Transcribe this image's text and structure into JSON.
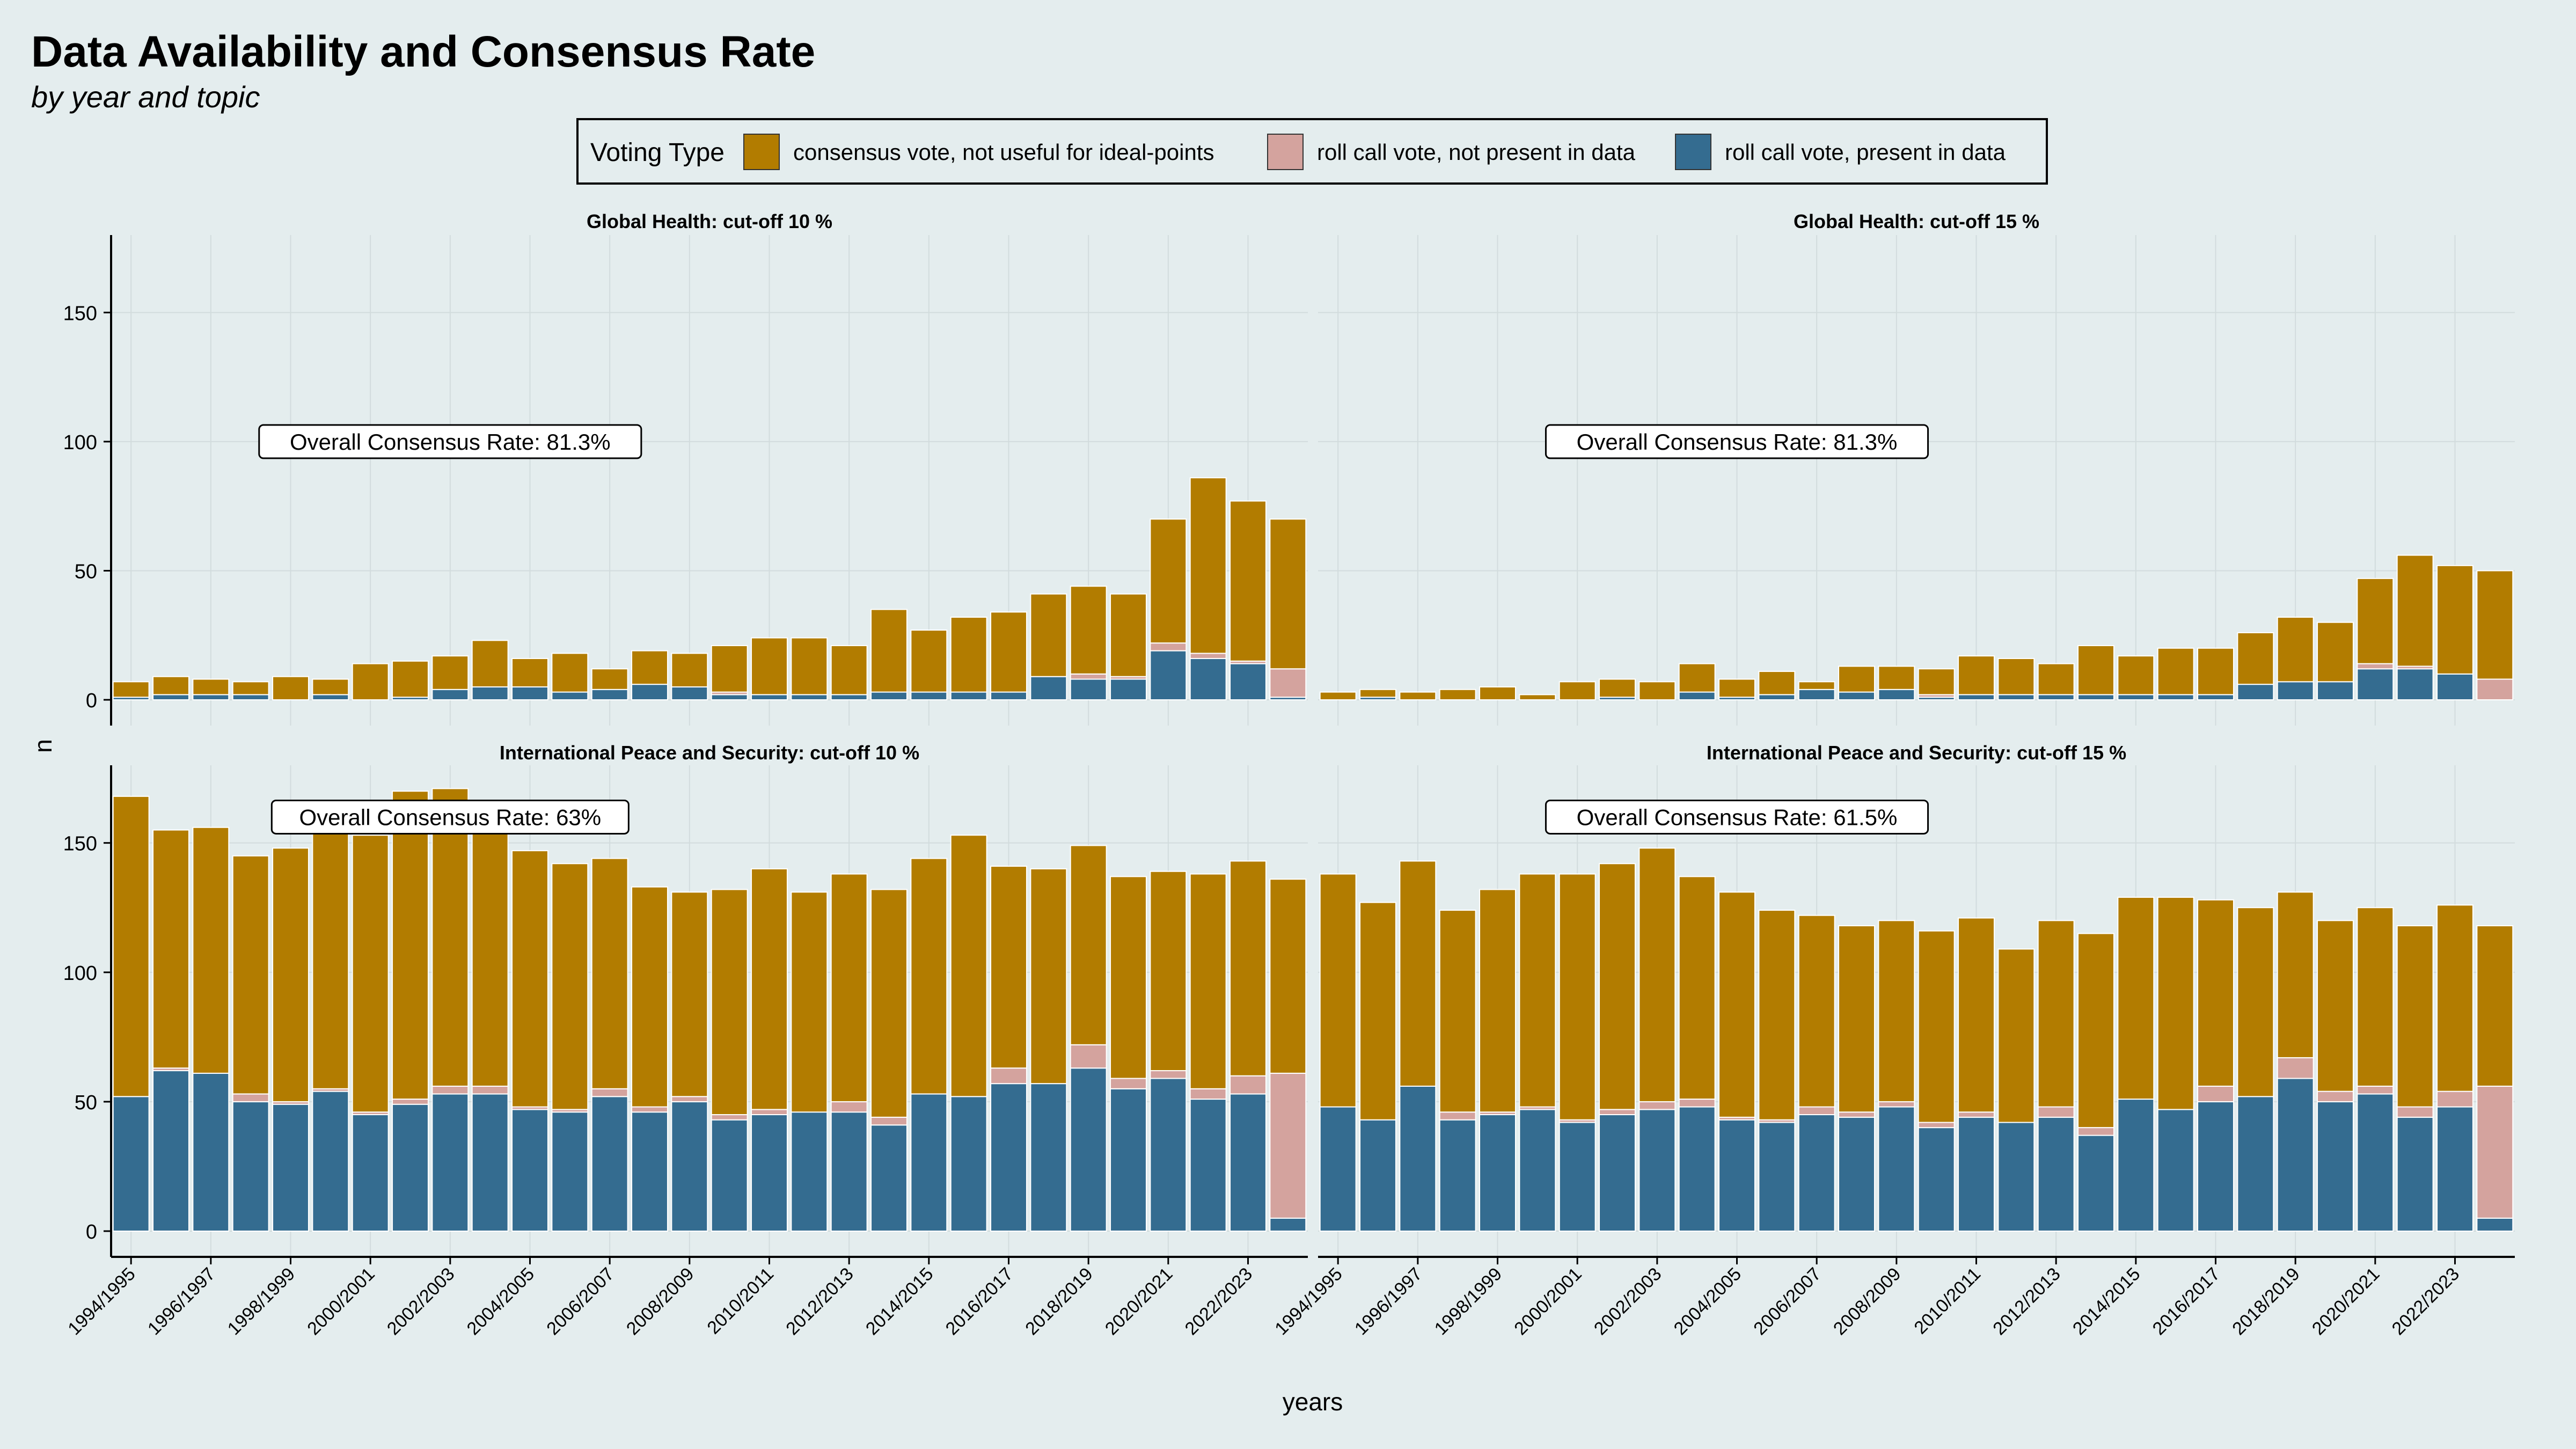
{
  "title": "Data Availability and Consensus Rate",
  "subtitle": "by year and topic",
  "legend": {
    "title": "Voting Type",
    "position": "top",
    "items": [
      {
        "label": "consensus vote, not useful for ideal-points",
        "color": "#b27c00"
      },
      {
        "label": "roll call vote, not present in data",
        "color": "#d4a39e"
      },
      {
        "label": "roll call vote, present in data",
        "color": "#346c90"
      }
    ]
  },
  "colors": {
    "background": "#e4edee",
    "grid": "#d2dcdd"
  },
  "chart_data": {
    "type": "bar",
    "stacked": true,
    "xlabel": "years",
    "ylabel": "n",
    "ylim": [
      0,
      180
    ],
    "yticks": [
      0,
      50,
      100,
      150
    ],
    "grid": true,
    "categories": [
      "1994/1995",
      "1995/1996",
      "1996/1997",
      "1997/1998",
      "1998/1999",
      "1999/2000",
      "2000/2001",
      "2001/2002",
      "2002/2003",
      "2003/2004",
      "2004/2005",
      "2005/2006",
      "2006/2007",
      "2007/2008",
      "2008/2009",
      "2009/2010",
      "2010/2011",
      "2011/2012",
      "2012/2013",
      "2013/2014",
      "2014/2015",
      "2015/2016",
      "2016/2017",
      "2017/2018",
      "2018/2019",
      "2019/2020",
      "2020/2021",
      "2021/2022",
      "2022/2023",
      "2023/2024"
    ],
    "tick_labels": [
      "1994/1995",
      "1996/1997",
      "1998/1999",
      "2000/2001",
      "2002/2003",
      "2004/2005",
      "2006/2007",
      "2008/2009",
      "2010/2011",
      "2012/2013",
      "2014/2015",
      "2016/2017",
      "2018/2019",
      "2020/2021",
      "2022/2023"
    ],
    "panels": [
      {
        "title": "Global Health: cut-off 10 %",
        "annotation": "Overall Consensus Rate: 81.3%",
        "annotation_at": {
          "x": "2002/2003",
          "y": 100
        },
        "series": [
          {
            "name": "roll call vote, present in data",
            "values": [
              1,
              2,
              2,
              2,
              0,
              2,
              0,
              1,
              4,
              5,
              5,
              3,
              4,
              6,
              5,
              2,
              2,
              2,
              2,
              3,
              3,
              3,
              3,
              9,
              8,
              8,
              19,
              16,
              14,
              1
            ]
          },
          {
            "name": "roll call vote, not present in data",
            "values": [
              0,
              0,
              0,
              0,
              0,
              0,
              0,
              0,
              0,
              0,
              0,
              0,
              0,
              0,
              0,
              1,
              0,
              0,
              0,
              0,
              0,
              0,
              0,
              0,
              2,
              1,
              3,
              2,
              1,
              11
            ]
          },
          {
            "name": "consensus vote, not useful for ideal-points",
            "values": [
              6,
              7,
              6,
              5,
              9,
              6,
              14,
              14,
              13,
              18,
              11,
              15,
              8,
              13,
              13,
              18,
              22,
              22,
              19,
              32,
              24,
              29,
              31,
              32,
              34,
              32,
              48,
              68,
              62,
              58
            ]
          }
        ]
      },
      {
        "title": "Global Health: cut-off 15 %",
        "annotation": "Overall Consensus Rate: 81.3%",
        "annotation_at": {
          "x": "2004/2005",
          "y": 100
        },
        "series": [
          {
            "name": "roll call vote, present in data",
            "values": [
              0,
              1,
              0,
              0,
              0,
              0,
              0,
              1,
              0,
              3,
              1,
              2,
              4,
              3,
              4,
              1,
              2,
              2,
              2,
              2,
              2,
              2,
              2,
              6,
              7,
              7,
              12,
              12,
              10,
              0
            ]
          },
          {
            "name": "roll call vote, not present in data",
            "values": [
              0,
              0,
              0,
              0,
              0,
              0,
              0,
              0,
              0,
              0,
              0,
              0,
              0,
              0,
              0,
              1,
              0,
              0,
              0,
              0,
              0,
              0,
              0,
              0,
              0,
              0,
              2,
              1,
              0,
              8
            ]
          },
          {
            "name": "consensus vote, not useful for ideal-points",
            "values": [
              3,
              3,
              3,
              4,
              5,
              2,
              7,
              7,
              7,
              11,
              7,
              9,
              3,
              10,
              9,
              10,
              15,
              14,
              12,
              19,
              15,
              18,
              18,
              20,
              25,
              23,
              33,
              43,
              42,
              42
            ]
          }
        ]
      },
      {
        "title": "International Peace and Security: cut-off 10 %",
        "annotation": "Overall Consensus Rate: 63%",
        "annotation_at": {
          "x": "2002/2003",
          "y": 160
        },
        "series": [
          {
            "name": "roll call vote, present in data",
            "values": [
              52,
              62,
              61,
              50,
              49,
              54,
              45,
              49,
              53,
              53,
              47,
              46,
              52,
              46,
              50,
              43,
              45,
              46,
              46,
              41,
              53,
              52,
              57,
              57,
              63,
              55,
              59,
              51,
              53,
              5
            ]
          },
          {
            "name": "roll call vote, not present in data",
            "values": [
              0,
              1,
              0,
              3,
              1,
              1,
              1,
              2,
              3,
              3,
              1,
              1,
              3,
              2,
              2,
              2,
              2,
              0,
              4,
              3,
              0,
              0,
              6,
              0,
              9,
              4,
              3,
              4,
              7,
              56
            ]
          },
          {
            "name": "consensus vote, not useful for ideal-points",
            "values": [
              116,
              92,
              95,
              92,
              98,
              109,
              107,
              119,
              115,
              104,
              99,
              95,
              89,
              85,
              79,
              87,
              93,
              85,
              88,
              88,
              91,
              101,
              78,
              83,
              77,
              78,
              77,
              83,
              83,
              75
            ]
          }
        ]
      },
      {
        "title": "International Peace and Security: cut-off 15 %",
        "annotation": "Overall Consensus Rate: 61.5%",
        "annotation_at": {
          "x": "2004/2005",
          "y": 160
        },
        "series": [
          {
            "name": "roll call vote, present in data",
            "values": [
              48,
              43,
              56,
              43,
              45,
              47,
              42,
              45,
              47,
              48,
              43,
              42,
              45,
              44,
              48,
              40,
              44,
              42,
              44,
              37,
              51,
              47,
              50,
              52,
              59,
              50,
              53,
              44,
              48,
              5
            ]
          },
          {
            "name": "roll call vote, not present in data",
            "values": [
              0,
              0,
              0,
              3,
              1,
              1,
              1,
              2,
              3,
              3,
              1,
              1,
              3,
              2,
              2,
              2,
              2,
              0,
              4,
              3,
              0,
              0,
              6,
              0,
              8,
              4,
              3,
              4,
              6,
              51
            ]
          },
          {
            "name": "consensus vote, not useful for ideal-points",
            "values": [
              90,
              84,
              87,
              78,
              86,
              90,
              95,
              95,
              98,
              86,
              87,
              81,
              74,
              72,
              70,
              74,
              75,
              67,
              72,
              75,
              78,
              82,
              72,
              73,
              64,
              66,
              69,
              70,
              72,
              62
            ]
          }
        ]
      }
    ]
  }
}
